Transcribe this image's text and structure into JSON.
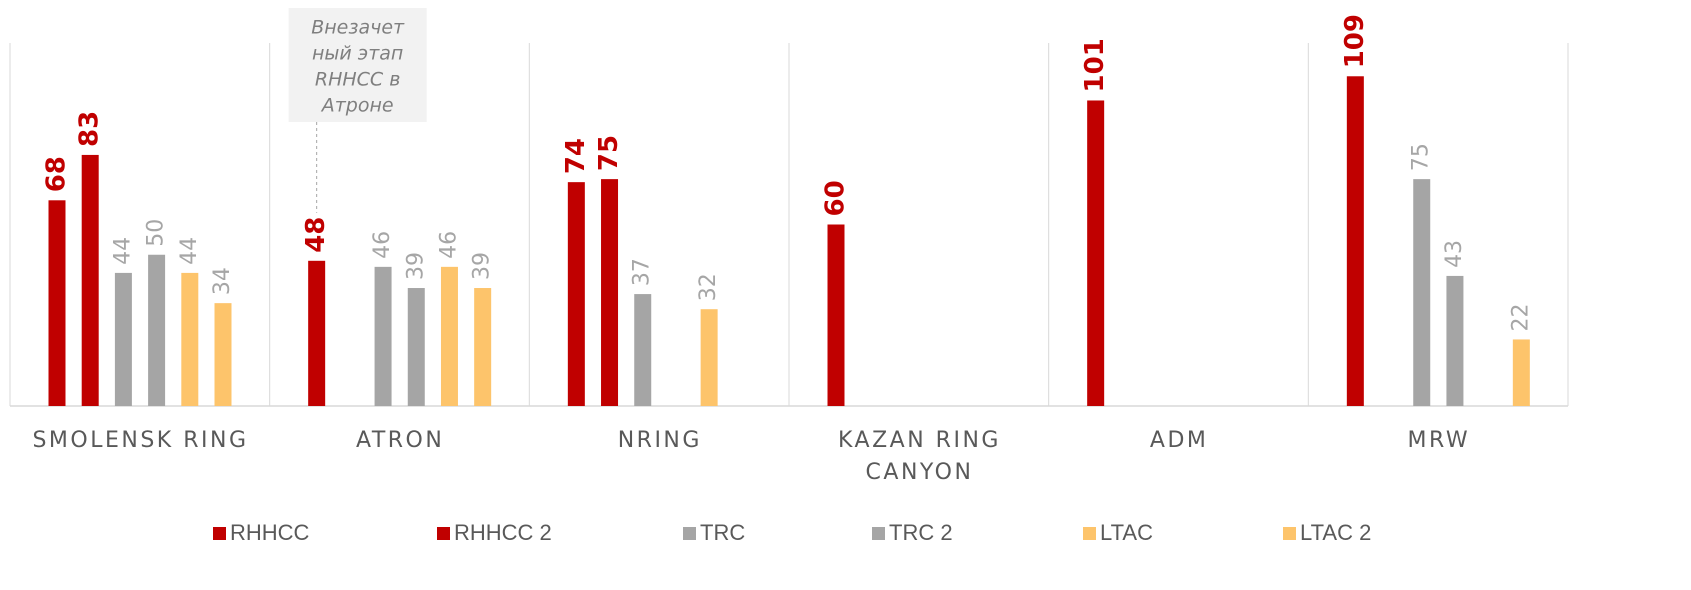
{
  "chart_data": {
    "type": "bar",
    "categories": [
      "SMOLENSK RING",
      "ATRON",
      "NRING",
      "KAZAN RING CANYON",
      "ADM",
      "MRW"
    ],
    "series": [
      {
        "name": "RHHCC",
        "color": "#c00000",
        "label_color": "#c00000",
        "label_bold": true,
        "values": [
          68,
          48,
          74,
          60,
          101,
          109
        ]
      },
      {
        "name": "RHHCC 2",
        "color": "#c00000",
        "label_color": "#c00000",
        "label_bold": true,
        "values": [
          83,
          null,
          75,
          null,
          null,
          null
        ]
      },
      {
        "name": "TRC",
        "color": "#a5a5a5",
        "label_color": "#a6a6a6",
        "label_bold": false,
        "values": [
          44,
          46,
          37,
          null,
          null,
          75
        ]
      },
      {
        "name": "TRC 2",
        "color": "#a5a5a5",
        "label_color": "#a6a6a6",
        "label_bold": false,
        "values": [
          50,
          39,
          null,
          null,
          null,
          43
        ]
      },
      {
        "name": "LTAC",
        "color": "#fdc46b",
        "label_color": "#a6a6a6",
        "label_bold": false,
        "values": [
          44,
          46,
          32,
          null,
          null,
          null
        ]
      },
      {
        "name": "LTAC 2",
        "color": "#fdc46b",
        "label_color": "#a6a6a6",
        "label_bold": false,
        "values": [
          34,
          39,
          null,
          null,
          null,
          22
        ]
      }
    ],
    "ylim": [
      0,
      120
    ],
    "annotation": {
      "category": 1,
      "series": 0,
      "lines": [
        "Внезачет",
        "ный этап",
        "RHHCC в",
        "Атроне"
      ]
    },
    "legend": "bottom"
  }
}
